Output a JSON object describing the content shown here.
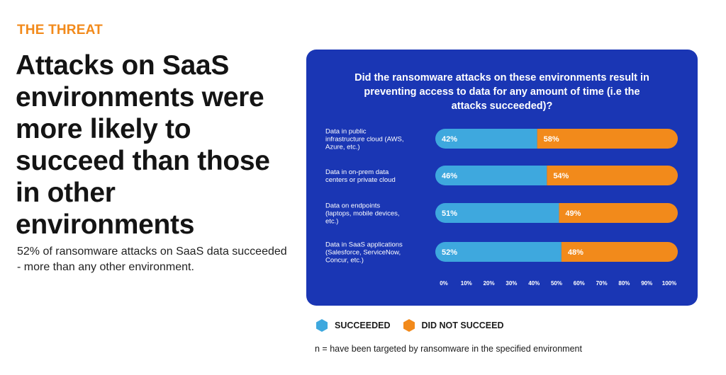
{
  "page": {
    "eyebrow": "THE THREAT",
    "headline": "Attacks on SaaS environments were more likely to succeed than those in other environments",
    "subtext": "52% of ransomware attacks on SaaS data succeeded - more than any other environment.",
    "footnote": "n = have been targeted by ransomware in the specified environment"
  },
  "colors": {
    "panel": "#1a36b4",
    "succeeded": "#3ea8de",
    "did_not_succeed": "#f28a1b",
    "accent": "#f28a1b"
  },
  "chart_data": {
    "type": "bar",
    "orientation": "horizontal",
    "stacked": true,
    "title_lines": [
      "Did the ransomware attacks on these environments result in",
      "preventing access to data for any amount of time (i.e the",
      "attacks succeeded)?"
    ],
    "categories": [
      [
        "Data in public",
        "infrastructure cloud (AWS,",
        "Azure, etc.)"
      ],
      [
        "Data in on-prem data",
        "centers or private cloud"
      ],
      [
        "Data on endpoints",
        "(laptops, mobile devices,",
        "etc.)"
      ],
      [
        "Data in SaaS applications",
        "(Salesforce, ServiceNow,",
        "Concur, etc.)"
      ]
    ],
    "series": [
      {
        "name": "SUCCEEDED",
        "color": "#3ea8de",
        "values": [
          42,
          46,
          51,
          52
        ]
      },
      {
        "name": "DID NOT SUCCEED",
        "color": "#f28a1b",
        "values": [
          58,
          54,
          49,
          48
        ]
      }
    ],
    "x_ticks": [
      "0%",
      "10%",
      "20%",
      "30%",
      "40%",
      "50%",
      "60%",
      "70%",
      "80%",
      "90%",
      "100%"
    ],
    "xlim": [
      0,
      100
    ],
    "value_suffix": "%",
    "legend": "bottom-left"
  }
}
